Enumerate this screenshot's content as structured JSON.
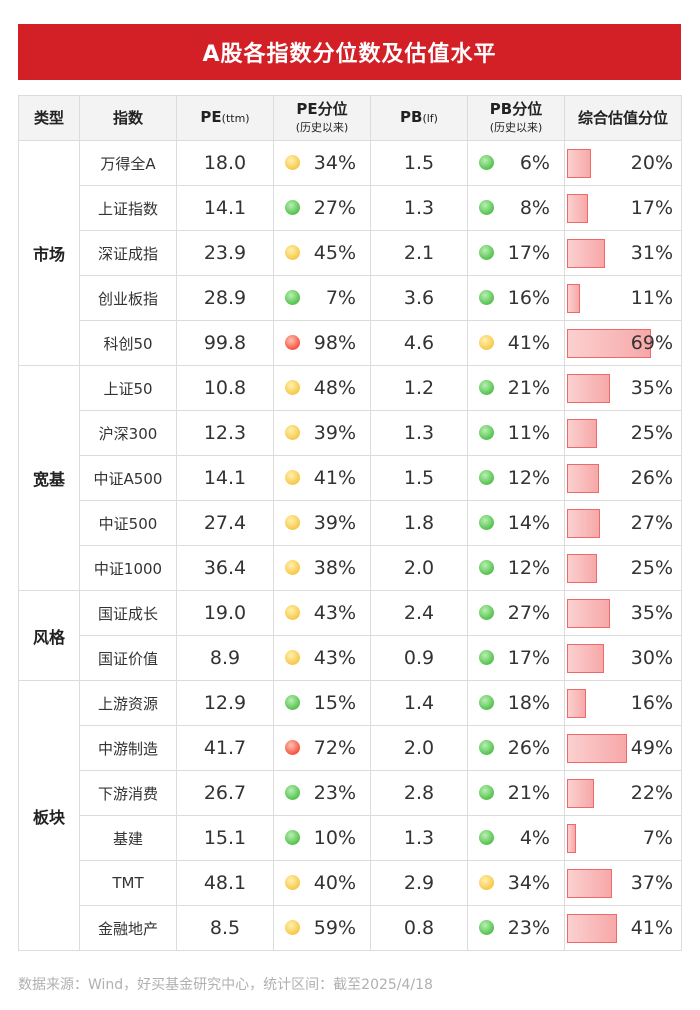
{
  "title": "A股各指数分位数及估值水平",
  "headers": {
    "type": "类型",
    "index": "指数",
    "pe": "PE",
    "pe_unit": "(ttm)",
    "pe_pct": "PE分位",
    "pe_pct_sub": "(历史以来)",
    "pb": "PB",
    "pb_unit": "(lf)",
    "pb_pct": "PB分位",
    "pb_pct_sub": "(历史以来)",
    "combined": "综合估值分位"
  },
  "colors": {
    "green": "#55c24e",
    "yellow": "#f7c84a",
    "red": "#f5533f",
    "bar": "#f7a8a8",
    "title_bg": "#d32026"
  },
  "groups": [
    "市场",
    "宽基",
    "风格",
    "板块"
  ],
  "chart_data": {
    "type": "table",
    "rows": [
      {
        "group": "市场",
        "name": "万得全A",
        "pe": "18.0",
        "pe_pct": "34%",
        "pe_color": "yellow",
        "pb": "1.5",
        "pb_pct": "6%",
        "pb_color": "green",
        "combined": "20%",
        "combined_value": 20
      },
      {
        "group": "市场",
        "name": "上证指数",
        "pe": "14.1",
        "pe_pct": "27%",
        "pe_color": "green",
        "pb": "1.3",
        "pb_pct": "8%",
        "pb_color": "green",
        "combined": "17%",
        "combined_value": 17
      },
      {
        "group": "市场",
        "name": "深证成指",
        "pe": "23.9",
        "pe_pct": "45%",
        "pe_color": "yellow",
        "pb": "2.1",
        "pb_pct": "17%",
        "pb_color": "green",
        "combined": "31%",
        "combined_value": 31
      },
      {
        "group": "市场",
        "name": "创业板指",
        "pe": "28.9",
        "pe_pct": "7%",
        "pe_color": "green",
        "pb": "3.6",
        "pb_pct": "16%",
        "pb_color": "green",
        "combined": "11%",
        "combined_value": 11
      },
      {
        "group": "市场",
        "name": "科创50",
        "pe": "99.8",
        "pe_pct": "98%",
        "pe_color": "red",
        "pb": "4.6",
        "pb_pct": "41%",
        "pb_color": "yellow",
        "combined": "69%",
        "combined_value": 69
      },
      {
        "group": "宽基",
        "name": "上证50",
        "pe": "10.8",
        "pe_pct": "48%",
        "pe_color": "yellow",
        "pb": "1.2",
        "pb_pct": "21%",
        "pb_color": "green",
        "combined": "35%",
        "combined_value": 35
      },
      {
        "group": "宽基",
        "name": "沪深300",
        "pe": "12.3",
        "pe_pct": "39%",
        "pe_color": "yellow",
        "pb": "1.3",
        "pb_pct": "11%",
        "pb_color": "green",
        "combined": "25%",
        "combined_value": 25
      },
      {
        "group": "宽基",
        "name": "中证A500",
        "pe": "14.1",
        "pe_pct": "41%",
        "pe_color": "yellow",
        "pb": "1.5",
        "pb_pct": "12%",
        "pb_color": "green",
        "combined": "26%",
        "combined_value": 26
      },
      {
        "group": "宽基",
        "name": "中证500",
        "pe": "27.4",
        "pe_pct": "39%",
        "pe_color": "yellow",
        "pb": "1.8",
        "pb_pct": "14%",
        "pb_color": "green",
        "combined": "27%",
        "combined_value": 27
      },
      {
        "group": "宽基",
        "name": "中证1000",
        "pe": "36.4",
        "pe_pct": "38%",
        "pe_color": "yellow",
        "pb": "2.0",
        "pb_pct": "12%",
        "pb_color": "green",
        "combined": "25%",
        "combined_value": 25
      },
      {
        "group": "风格",
        "name": "国证成长",
        "pe": "19.0",
        "pe_pct": "43%",
        "pe_color": "yellow",
        "pb": "2.4",
        "pb_pct": "27%",
        "pb_color": "green",
        "combined": "35%",
        "combined_value": 35
      },
      {
        "group": "风格",
        "name": "国证价值",
        "pe": "8.9",
        "pe_pct": "43%",
        "pe_color": "yellow",
        "pb": "0.9",
        "pb_pct": "17%",
        "pb_color": "green",
        "combined": "30%",
        "combined_value": 30
      },
      {
        "group": "板块",
        "name": "上游资源",
        "pe": "12.9",
        "pe_pct": "15%",
        "pe_color": "green",
        "pb": "1.4",
        "pb_pct": "18%",
        "pb_color": "green",
        "combined": "16%",
        "combined_value": 16
      },
      {
        "group": "板块",
        "name": "中游制造",
        "pe": "41.7",
        "pe_pct": "72%",
        "pe_color": "red",
        "pb": "2.0",
        "pb_pct": "26%",
        "pb_color": "green",
        "combined": "49%",
        "combined_value": 49
      },
      {
        "group": "板块",
        "name": "下游消费",
        "pe": "26.7",
        "pe_pct": "23%",
        "pe_color": "green",
        "pb": "2.8",
        "pb_pct": "21%",
        "pb_color": "green",
        "combined": "22%",
        "combined_value": 22
      },
      {
        "group": "板块",
        "name": "基建",
        "pe": "15.1",
        "pe_pct": "10%",
        "pe_color": "green",
        "pb": "1.3",
        "pb_pct": "4%",
        "pb_color": "green",
        "combined": "7%",
        "combined_value": 7
      },
      {
        "group": "板块",
        "name": "TMT",
        "pe": "48.1",
        "pe_pct": "40%",
        "pe_color": "yellow",
        "pb": "2.9",
        "pb_pct": "34%",
        "pb_color": "yellow",
        "combined": "37%",
        "combined_value": 37
      },
      {
        "group": "板块",
        "name": "金融地产",
        "pe": "8.5",
        "pe_pct": "59%",
        "pe_color": "yellow",
        "pb": "0.8",
        "pb_pct": "23%",
        "pb_color": "green",
        "combined": "41%",
        "combined_value": 41
      }
    ]
  },
  "footer": "数据来源：Wind，好买基金研究中心，统计区间：截至2025/4/18"
}
